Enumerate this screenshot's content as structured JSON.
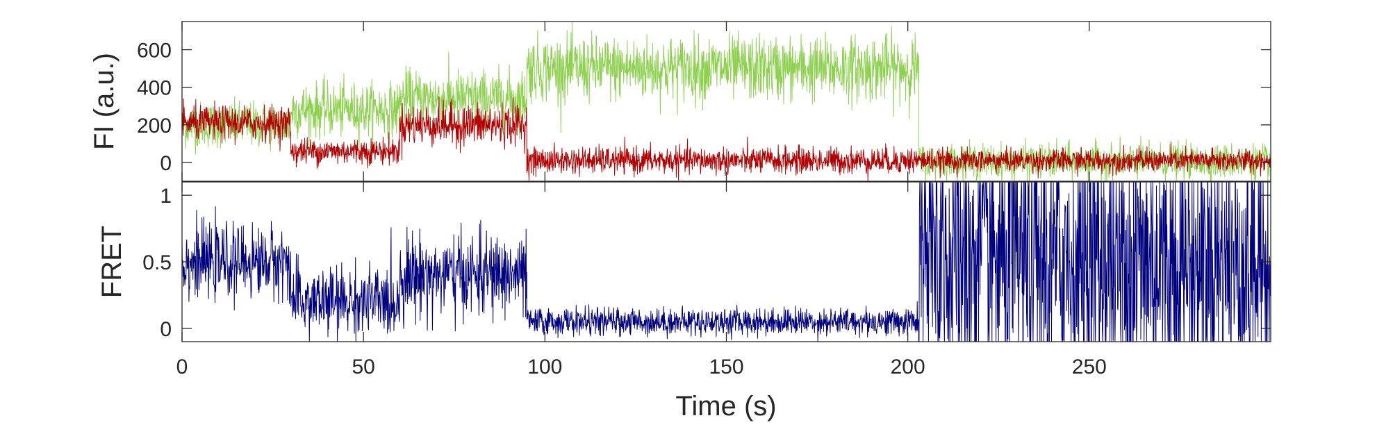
{
  "chart_data": [
    {
      "type": "line",
      "ylabel": "FI (a.u.)",
      "xlim": [
        0,
        300
      ],
      "ylim": [
        -100,
        750
      ],
      "yticks": [
        0,
        200,
        400,
        600
      ],
      "grid": false,
      "colors": {
        "donor": "#8ed150",
        "acceptor": "#b20000"
      },
      "series": [
        {
          "color": "#8ed150",
          "segments": [
            {
              "x": [
                0,
                30
              ],
              "level": 200,
              "noise": 60
            },
            {
              "x": [
                30,
                60
              ],
              "level": 280,
              "noise": 70
            },
            {
              "x": [
                60,
                95
              ],
              "level": 340,
              "noise": 75
            },
            {
              "x": [
                95,
                203
              ],
              "level": 500,
              "noise": 85
            },
            {
              "x": [
                203,
                300
              ],
              "level": 5,
              "noise": 45
            }
          ]
        },
        {
          "color": "#b20000",
          "segments": [
            {
              "x": [
                0,
                30
              ],
              "level": 210,
              "noise": 45
            },
            {
              "x": [
                30,
                60
              ],
              "level": 60,
              "noise": 35
            },
            {
              "x": [
                60,
                95
              ],
              "level": 200,
              "noise": 55
            },
            {
              "x": [
                95,
                203
              ],
              "level": 10,
              "noise": 35
            },
            {
              "x": [
                203,
                300
              ],
              "level": 10,
              "noise": 30
            }
          ]
        }
      ]
    },
    {
      "type": "line",
      "ylabel": "FRET",
      "xlabel": "Time (s)",
      "xlim": [
        0,
        300
      ],
      "xticks": [
        0,
        50,
        100,
        150,
        200,
        250
      ],
      "ylim": [
        -0.1,
        1.1
      ],
      "yticks": [
        0,
        0.5,
        1
      ],
      "ytick_labels": [
        "0",
        "0.5",
        "1"
      ],
      "grid": false,
      "series": [
        {
          "color": "#00007f",
          "segments": [
            {
              "x": [
                0,
                30
              ],
              "level": 0.5,
              "noise": 0.13
            },
            {
              "x": [
                30,
                60
              ],
              "level": 0.2,
              "noise": 0.13
            },
            {
              "x": [
                60,
                95
              ],
              "level": 0.4,
              "noise": 0.15
            },
            {
              "x": [
                95,
                203
              ],
              "level": 0.05,
              "noise": 0.05
            },
            {
              "x": [
                203,
                300
              ],
              "level": 0.5,
              "noise": 0.6
            }
          ]
        }
      ]
    }
  ]
}
